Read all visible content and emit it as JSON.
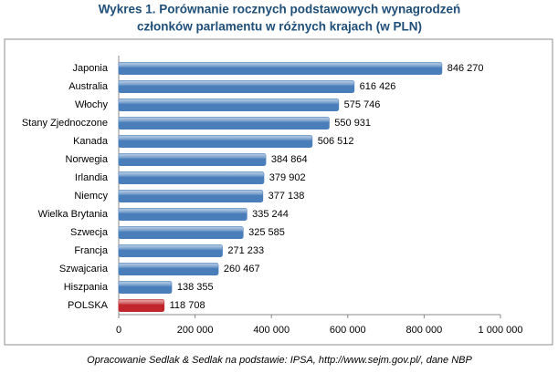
{
  "chart_data": {
    "type": "bar",
    "orientation": "horizontal",
    "title": [
      "Wykres 1. Porównanie rocznych podstawowych wynagrodzeń",
      "członków parlamentu w różnych krajach (w PLN)"
    ],
    "categories": [
      "Japonia",
      "Australia",
      "Włochy",
      "Stany Zjednoczone",
      "Kanada",
      "Norwegia",
      "Irlandia",
      "Niemcy",
      "Wielka Brytania",
      "Szwecja",
      "Francja",
      "Szwajcaria",
      "Hiszpania",
      "POLSKA"
    ],
    "values": [
      846270,
      616426,
      575746,
      550931,
      506512,
      384864,
      379902,
      377138,
      335244,
      325585,
      271233,
      260467,
      138355,
      118708
    ],
    "value_labels": [
      "846 270",
      "616 426",
      "575 746",
      "550 931",
      "506 512",
      "384 864",
      "379 902",
      "377 138",
      "335 244",
      "325 585",
      "271 233",
      "260 467",
      "138 355",
      "118 708"
    ],
    "colors": [
      "#4a7ebb",
      "#4a7ebb",
      "#4a7ebb",
      "#4a7ebb",
      "#4a7ebb",
      "#4a7ebb",
      "#4a7ebb",
      "#4a7ebb",
      "#4a7ebb",
      "#4a7ebb",
      "#4a7ebb",
      "#4a7ebb",
      "#4a7ebb",
      "#c0262b"
    ],
    "xlim": [
      0,
      1000000
    ],
    "xticks": [
      0,
      {
        "value": 200000,
        "label": "200 000"
      },
      {
        "value": 400000,
        "label": "400 000"
      },
      {
        "value": 600000,
        "label": "600 000"
      },
      {
        "value": 800000,
        "label": "800 000"
      },
      {
        "value": 1000000,
        "label": "1 000 000"
      }
    ],
    "grid": false,
    "source": "Opracowanie Sedlak & Sedlak na podstawie: IPSA, http://www.sejm.gov.pl/,  dane NBP"
  }
}
